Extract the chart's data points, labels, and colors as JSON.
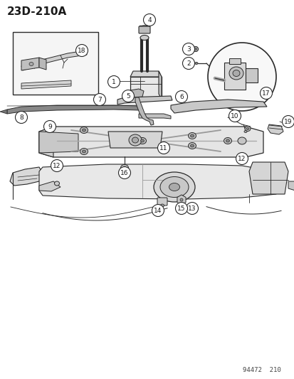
{
  "title": "23D-210A",
  "footer": "94472  210",
  "bg_color": "#ffffff",
  "lc": "#2a2a2a",
  "tc": "#1a1a1a",
  "cf": "#ffffff",
  "ce": "#2a2a2a",
  "gray_fill": "#d0d0d0",
  "light_gray": "#e8e8e8"
}
